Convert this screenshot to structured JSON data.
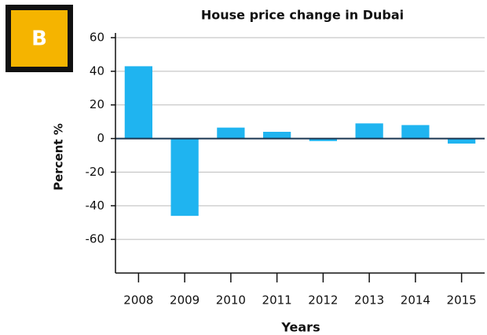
{
  "chart_data": {
    "type": "bar",
    "title": "House price change in Dubai",
    "badge": "B",
    "xlabel": "Years",
    "ylabel": "Percent %",
    "categories": [
      "2008",
      "2009",
      "2010",
      "2011",
      "2012",
      "2013",
      "2014",
      "2015"
    ],
    "values": [
      43,
      -46,
      6.5,
      4,
      -1.5,
      9,
      8,
      -3
    ],
    "color": "#1fb4f0",
    "ylim": [
      -80,
      60
    ],
    "yticks": [
      -60,
      -40,
      -20,
      0,
      20,
      40,
      60
    ],
    "grid": true
  }
}
